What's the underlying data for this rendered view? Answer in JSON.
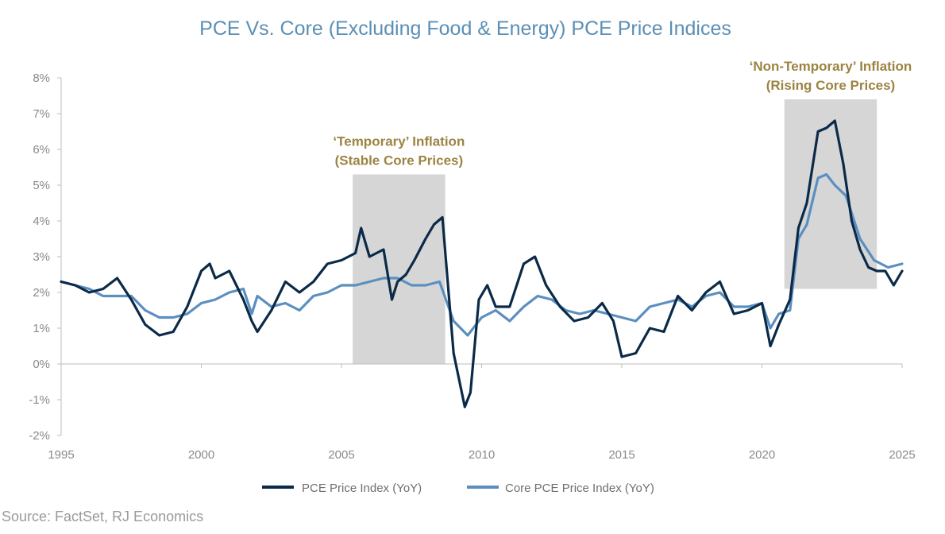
{
  "colors": {
    "pce": "#0b2a48",
    "core": "#5b8fc0",
    "shade": "#d6d6d6",
    "annotation": "#9b8341",
    "title": "#5b8fb5"
  },
  "chart_data": {
    "type": "line",
    "title": "PCE Vs. Core (Excluding Food & Energy) PCE Price Indices",
    "xlabel": "",
    "ylabel": "",
    "xlim": [
      1995,
      2025
    ],
    "ylim": [
      -2,
      8
    ],
    "x_ticks": [
      "1995",
      "2000",
      "2005",
      "2010",
      "2015",
      "2020",
      "2025"
    ],
    "y_ticks": [
      "-2%",
      "-1%",
      "0%",
      "1%",
      "2%",
      "3%",
      "4%",
      "5%",
      "6%",
      "7%",
      "8%"
    ],
    "grid": false,
    "legend_position": "bottom",
    "series": [
      {
        "name": "PCE Price Index (YoY)",
        "color": "#0b2a48",
        "x": [
          1995.0,
          1995.5,
          1996.0,
          1996.5,
          1997.0,
          1997.5,
          1998.0,
          1998.5,
          1999.0,
          1999.5,
          2000.0,
          2000.3,
          2000.5,
          2001.0,
          2001.5,
          2001.8,
          2002.0,
          2002.5,
          2003.0,
          2003.5,
          2004.0,
          2004.5,
          2005.0,
          2005.5,
          2005.7,
          2006.0,
          2006.5,
          2006.8,
          2007.0,
          2007.3,
          2007.6,
          2008.0,
          2008.3,
          2008.6,
          2009.0,
          2009.4,
          2009.6,
          2009.9,
          2010.2,
          2010.5,
          2011.0,
          2011.5,
          2011.9,
          2012.3,
          2012.8,
          2013.3,
          2013.8,
          2014.3,
          2014.7,
          2015.0,
          2015.5,
          2016.0,
          2016.5,
          2017.0,
          2017.5,
          2018.0,
          2018.5,
          2019.0,
          2019.5,
          2020.0,
          2020.3,
          2020.6,
          2021.0,
          2021.3,
          2021.6,
          2022.0,
          2022.3,
          2022.6,
          2022.9,
          2023.2,
          2023.5,
          2023.8,
          2024.1,
          2024.4,
          2024.7,
          2025.0
        ],
        "y": [
          2.3,
          2.2,
          2.0,
          2.1,
          2.4,
          1.8,
          1.1,
          0.8,
          0.9,
          1.6,
          2.6,
          2.8,
          2.4,
          2.6,
          1.8,
          1.2,
          0.9,
          1.5,
          2.3,
          2.0,
          2.3,
          2.8,
          2.9,
          3.1,
          3.8,
          3.0,
          3.2,
          1.8,
          2.3,
          2.5,
          2.9,
          3.5,
          3.9,
          4.1,
          0.3,
          -1.2,
          -0.8,
          1.8,
          2.2,
          1.6,
          1.6,
          2.8,
          3.0,
          2.2,
          1.6,
          1.2,
          1.3,
          1.7,
          1.2,
          0.2,
          0.3,
          1.0,
          0.9,
          1.9,
          1.5,
          2.0,
          2.3,
          1.4,
          1.5,
          1.7,
          0.5,
          1.1,
          1.8,
          3.8,
          4.5,
          6.5,
          6.6,
          6.8,
          5.6,
          4.0,
          3.2,
          2.7,
          2.6,
          2.6,
          2.2,
          2.6
        ]
      },
      {
        "name": "Core PCE Price Index (YoY)",
        "color": "#5b8fc0",
        "x": [
          1995.0,
          1995.5,
          1996.0,
          1996.5,
          1997.0,
          1997.5,
          1998.0,
          1998.5,
          1999.0,
          1999.5,
          2000.0,
          2000.5,
          2001.0,
          2001.5,
          2001.8,
          2002.0,
          2002.5,
          2003.0,
          2003.5,
          2004.0,
          2004.5,
          2005.0,
          2005.5,
          2006.0,
          2006.5,
          2007.0,
          2007.5,
          2008.0,
          2008.5,
          2009.0,
          2009.5,
          2010.0,
          2010.5,
          2011.0,
          2011.5,
          2012.0,
          2012.5,
          2013.0,
          2013.5,
          2014.0,
          2014.5,
          2015.0,
          2015.5,
          2016.0,
          2016.5,
          2017.0,
          2017.5,
          2018.0,
          2018.5,
          2019.0,
          2019.5,
          2020.0,
          2020.3,
          2020.6,
          2021.0,
          2021.3,
          2021.6,
          2022.0,
          2022.3,
          2022.6,
          2023.0,
          2023.5,
          2024.0,
          2024.5,
          2025.0
        ],
        "y": [
          2.3,
          2.2,
          2.1,
          1.9,
          1.9,
          1.9,
          1.5,
          1.3,
          1.3,
          1.4,
          1.7,
          1.8,
          2.0,
          2.1,
          1.4,
          1.9,
          1.6,
          1.7,
          1.5,
          1.9,
          2.0,
          2.2,
          2.2,
          2.3,
          2.4,
          2.4,
          2.2,
          2.2,
          2.3,
          1.2,
          0.8,
          1.3,
          1.5,
          1.2,
          1.6,
          1.9,
          1.8,
          1.5,
          1.4,
          1.5,
          1.4,
          1.3,
          1.2,
          1.6,
          1.7,
          1.8,
          1.6,
          1.9,
          2.0,
          1.6,
          1.6,
          1.7,
          1.0,
          1.4,
          1.5,
          3.5,
          3.9,
          5.2,
          5.3,
          5.0,
          4.7,
          3.5,
          2.9,
          2.7,
          2.8
        ]
      }
    ],
    "annotations": [
      {
        "lines": [
          "‘Temporary’ Inflation",
          "(Stable Core Prices)"
        ],
        "x_start": 2005.4,
        "x_end": 2008.7,
        "y_top": 5.3,
        "y_bottom": 0.0
      },
      {
        "lines": [
          "‘Non-Temporary’ Inflation",
          "(Rising Core Prices)"
        ],
        "x_start": 2020.8,
        "x_end": 2024.1,
        "y_top": 7.4,
        "y_bottom": 2.1
      }
    ]
  },
  "footer": {
    "source": "Source: FactSet, RJ Economics"
  }
}
